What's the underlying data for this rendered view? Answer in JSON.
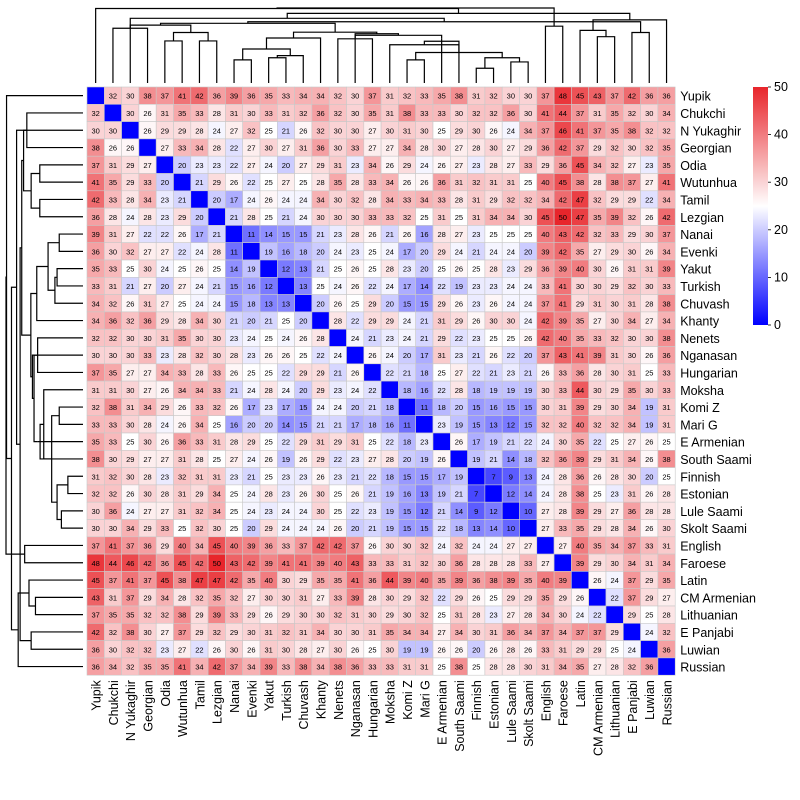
{
  "chart_data": {
    "type": "heatmap",
    "title": "",
    "xlabel": "",
    "ylabel": "",
    "labels": [
      "Yupik",
      "Chukchi",
      "N Yukaghir",
      "Georgian",
      "Odia",
      "Wutunhua",
      "Tamil",
      "Lezgian",
      "Nanai",
      "Evenki",
      "Yakut",
      "Turkish",
      "Chuvash",
      "Khanty",
      "Nenets",
      "Nganasan",
      "Hungarian",
      "Moksha",
      "Komi Z",
      "Mari G",
      "E Armenian",
      "South Saami",
      "Finnish",
      "Estonian",
      "Lule Saami",
      "Skolt Saami",
      "English",
      "Faroese",
      "Latin",
      "CM Armenian",
      "Lithuanian",
      "E Panjabi",
      "Luwian",
      "Russian"
    ],
    "matrix": [
      [
        0,
        32,
        30,
        38,
        37,
        41,
        42,
        36,
        39,
        36,
        35,
        33,
        34,
        34,
        32,
        30,
        37,
        31,
        32,
        33,
        35,
        38,
        31,
        32,
        30,
        30,
        37,
        48,
        45,
        43,
        37,
        42,
        36,
        36
      ],
      [
        32,
        0,
        30,
        26,
        31,
        35,
        33,
        28,
        31,
        30,
        33,
        31,
        32,
        36,
        32,
        30,
        35,
        31,
        38,
        33,
        33,
        30,
        32,
        32,
        36,
        30,
        41,
        44,
        37,
        31,
        35,
        32,
        30,
        34
      ],
      [
        30,
        30,
        0,
        26,
        29,
        29,
        28,
        24,
        27,
        32,
        25,
        21,
        26,
        32,
        30,
        30,
        27,
        30,
        31,
        30,
        25,
        29,
        30,
        26,
        24,
        34,
        37,
        46,
        41,
        37,
        35,
        38,
        32,
        32
      ],
      [
        38,
        26,
        26,
        0,
        27,
        33,
        34,
        28,
        22,
        27,
        30,
        27,
        31,
        36,
        30,
        33,
        27,
        27,
        34,
        28,
        30,
        27,
        28,
        30,
        27,
        29,
        36,
        42,
        37,
        29,
        32,
        30,
        32,
        35
      ],
      [
        37,
        31,
        29,
        27,
        0,
        20,
        23,
        23,
        22,
        27,
        24,
        20,
        27,
        29,
        31,
        23,
        34,
        26,
        29,
        24,
        26,
        27,
        23,
        28,
        27,
        33,
        29,
        36,
        45,
        34,
        32,
        27,
        23,
        35
      ],
      [
        41,
        35,
        29,
        33,
        20,
        0,
        21,
        29,
        26,
        22,
        25,
        27,
        25,
        28,
        35,
        28,
        33,
        34,
        26,
        26,
        36,
        31,
        32,
        31,
        31,
        25,
        40,
        45,
        38,
        28,
        38,
        37,
        27,
        41
      ],
      [
        42,
        33,
        28,
        34,
        23,
        21,
        0,
        20,
        17,
        24,
        26,
        24,
        24,
        34,
        30,
        32,
        28,
        34,
        33,
        34,
        33,
        28,
        31,
        29,
        32,
        32,
        34,
        42,
        47,
        32,
        29,
        29,
        22,
        34
      ],
      [
        36,
        28,
        24,
        28,
        23,
        29,
        20,
        0,
        21,
        28,
        25,
        21,
        24,
        30,
        30,
        30,
        33,
        33,
        32,
        25,
        31,
        25,
        31,
        34,
        34,
        30,
        45,
        50,
        47,
        35,
        39,
        32,
        26,
        42
      ],
      [
        39,
        31,
        27,
        22,
        22,
        26,
        17,
        21,
        0,
        11,
        14,
        15,
        15,
        21,
        23,
        28,
        26,
        21,
        26,
        16,
        28,
        27,
        23,
        25,
        25,
        25,
        40,
        43,
        42,
        32,
        33,
        29,
        30,
        37
      ],
      [
        36,
        30,
        32,
        27,
        27,
        22,
        24,
        28,
        11,
        0,
        19,
        16,
        18,
        20,
        24,
        23,
        25,
        24,
        17,
        20,
        29,
        24,
        21,
        24,
        24,
        20,
        39,
        42,
        35,
        27,
        29,
        30,
        26,
        34
      ],
      [
        35,
        33,
        25,
        30,
        24,
        25,
        26,
        25,
        14,
        19,
        0,
        12,
        13,
        21,
        25,
        26,
        25,
        28,
        23,
        20,
        25,
        26,
        25,
        28,
        23,
        29,
        36,
        39,
        40,
        30,
        26,
        31,
        31,
        39
      ],
      [
        33,
        31,
        21,
        27,
        20,
        27,
        24,
        21,
        15,
        16,
        12,
        0,
        13,
        25,
        24,
        26,
        22,
        24,
        17,
        14,
        22,
        19,
        23,
        23,
        24,
        24,
        33,
        41,
        30,
        30,
        29,
        32,
        30,
        33
      ],
      [
        34,
        32,
        26,
        31,
        27,
        25,
        24,
        24,
        15,
        18,
        13,
        13,
        0,
        20,
        26,
        25,
        29,
        20,
        15,
        15,
        29,
        26,
        23,
        26,
        24,
        24,
        37,
        41,
        29,
        31,
        30,
        31,
        28,
        38
      ],
      [
        34,
        36,
        32,
        36,
        29,
        28,
        34,
        30,
        21,
        20,
        21,
        25,
        20,
        0,
        28,
        22,
        29,
        29,
        24,
        21,
        31,
        29,
        26,
        30,
        30,
        24,
        42,
        39,
        35,
        27,
        30,
        34,
        27,
        34
      ],
      [
        32,
        32,
        30,
        30,
        31,
        35,
        30,
        30,
        23,
        24,
        25,
        24,
        26,
        28,
        0,
        24,
        21,
        23,
        24,
        21,
        29,
        22,
        23,
        25,
        25,
        26,
        42,
        40,
        35,
        33,
        32,
        30,
        30,
        38
      ],
      [
        30,
        30,
        30,
        33,
        23,
        28,
        32,
        30,
        28,
        23,
        26,
        26,
        25,
        22,
        24,
        0,
        26,
        24,
        20,
        17,
        31,
        23,
        21,
        26,
        22,
        20,
        37,
        43,
        41,
        39,
        31,
        30,
        26,
        36
      ],
      [
        37,
        35,
        27,
        27,
        34,
        33,
        28,
        33,
        26,
        25,
        25,
        22,
        29,
        29,
        21,
        26,
        0,
        22,
        21,
        18,
        25,
        27,
        22,
        21,
        23,
        21,
        26,
        33,
        36,
        28,
        30,
        31,
        25,
        33
      ],
      [
        31,
        31,
        30,
        27,
        26,
        34,
        34,
        33,
        21,
        24,
        28,
        24,
        20,
        29,
        23,
        24,
        22,
        0,
        18,
        16,
        22,
        28,
        18,
        19,
        19,
        19,
        30,
        33,
        44,
        30,
        29,
        35,
        30,
        33
      ],
      [
        32,
        38,
        31,
        34,
        29,
        26,
        33,
        32,
        26,
        17,
        23,
        17,
        15,
        24,
        24,
        20,
        21,
        18,
        0,
        11,
        18,
        20,
        15,
        16,
        15,
        15,
        30,
        31,
        39,
        29,
        30,
        34,
        19,
        31
      ],
      [
        33,
        33,
        30,
        28,
        24,
        26,
        34,
        25,
        16,
        20,
        20,
        14,
        15,
        21,
        21,
        17,
        18,
        16,
        11,
        0,
        23,
        19,
        15,
        13,
        12,
        15,
        32,
        32,
        40,
        32,
        32,
        34,
        19,
        31
      ],
      [
        35,
        33,
        25,
        30,
        26,
        36,
        33,
        31,
        28,
        29,
        25,
        22,
        29,
        31,
        29,
        31,
        25,
        22,
        18,
        23,
        0,
        26,
        17,
        19,
        21,
        22,
        24,
        30,
        35,
        22,
        25,
        27,
        26,
        25
      ],
      [
        38,
        30,
        29,
        27,
        27,
        31,
        28,
        25,
        27,
        24,
        26,
        19,
        26,
        29,
        22,
        23,
        27,
        28,
        20,
        19,
        26,
        0,
        19,
        21,
        14,
        18,
        32,
        36,
        39,
        29,
        31,
        34,
        26,
        38
      ],
      [
        31,
        32,
        30,
        28,
        23,
        32,
        31,
        31,
        23,
        21,
        25,
        23,
        23,
        26,
        23,
        21,
        22,
        18,
        15,
        15,
        17,
        19,
        0,
        7,
        9,
        13,
        24,
        28,
        36,
        26,
        28,
        30,
        20,
        25
      ],
      [
        32,
        32,
        26,
        30,
        28,
        31,
        29,
        34,
        25,
        24,
        28,
        23,
        26,
        30,
        25,
        26,
        21,
        19,
        16,
        13,
        19,
        21,
        7,
        0,
        12,
        14,
        24,
        28,
        38,
        25,
        23,
        31,
        26,
        28
      ],
      [
        30,
        36,
        24,
        27,
        27,
        31,
        32,
        34,
        25,
        24,
        23,
        24,
        24,
        30,
        25,
        22,
        23,
        19,
        15,
        12,
        21,
        14,
        9,
        12,
        0,
        10,
        27,
        28,
        39,
        29,
        27,
        36,
        28,
        28
      ],
      [
        30,
        30,
        34,
        29,
        33,
        25,
        32,
        30,
        25,
        20,
        29,
        24,
        24,
        24,
        26,
        20,
        21,
        19,
        15,
        15,
        22,
        18,
        13,
        14,
        10,
        0,
        27,
        33,
        35,
        29,
        28,
        34,
        26,
        30
      ],
      [
        37,
        41,
        37,
        36,
        29,
        40,
        34,
        45,
        40,
        39,
        36,
        33,
        37,
        42,
        42,
        37,
        26,
        30,
        30,
        32,
        24,
        32,
        24,
        24,
        27,
        27,
        0,
        27,
        40,
        35,
        34,
        37,
        33,
        31
      ],
      [
        48,
        44,
        46,
        42,
        36,
        45,
        42,
        50,
        43,
        42,
        39,
        41,
        41,
        39,
        40,
        43,
        33,
        33,
        31,
        32,
        30,
        36,
        28,
        28,
        28,
        33,
        27,
        0,
        39,
        29,
        30,
        34,
        31,
        34
      ],
      [
        45,
        37,
        41,
        37,
        45,
        38,
        47,
        47,
        42,
        35,
        40,
        30,
        29,
        35,
        35,
        41,
        36,
        44,
        39,
        40,
        35,
        39,
        36,
        38,
        39,
        35,
        40,
        39,
        0,
        26,
        24,
        37,
        29,
        35
      ],
      [
        43,
        31,
        37,
        29,
        34,
        28,
        32,
        35,
        32,
        27,
        30,
        30,
        31,
        27,
        33,
        39,
        28,
        30,
        29,
        32,
        22,
        29,
        26,
        25,
        29,
        29,
        35,
        29,
        26,
        0,
        22,
        37,
        29,
        27
      ],
      [
        37,
        35,
        35,
        32,
        32,
        38,
        29,
        39,
        33,
        29,
        26,
        29,
        30,
        30,
        32,
        31,
        30,
        29,
        30,
        32,
        25,
        31,
        28,
        23,
        27,
        28,
        34,
        30,
        24,
        22,
        0,
        29,
        25,
        28
      ],
      [
        42,
        32,
        38,
        30,
        27,
        37,
        29,
        32,
        29,
        30,
        31,
        32,
        31,
        34,
        30,
        30,
        31,
        35,
        34,
        34,
        27,
        34,
        30,
        31,
        36,
        34,
        37,
        34,
        37,
        37,
        29,
        0,
        24,
        32
      ],
      [
        36,
        30,
        32,
        32,
        23,
        27,
        22,
        26,
        30,
        26,
        31,
        30,
        28,
        27,
        30,
        26,
        25,
        30,
        19,
        19,
        26,
        26,
        20,
        26,
        28,
        26,
        33,
        31,
        29,
        29,
        25,
        24,
        0,
        36
      ],
      [
        36,
        34,
        32,
        35,
        35,
        41,
        34,
        42,
        37,
        34,
        39,
        33,
        38,
        34,
        38,
        36,
        33,
        33,
        31,
        31,
        25,
        38,
        25,
        28,
        28,
        30,
        31,
        34,
        35,
        27,
        28,
        32,
        36,
        0
      ]
    ],
    "color_scale": {
      "min": 0,
      "mid": 25,
      "max": 50,
      "low_color": "#0000ff",
      "mid_color": "#ffffff",
      "high_color": "#e8252b",
      "ticks": [
        0,
        10,
        20,
        30,
        40,
        50
      ]
    },
    "dendrograms": [
      "top",
      "left"
    ],
    "grid_color": "#c8c8c8"
  }
}
